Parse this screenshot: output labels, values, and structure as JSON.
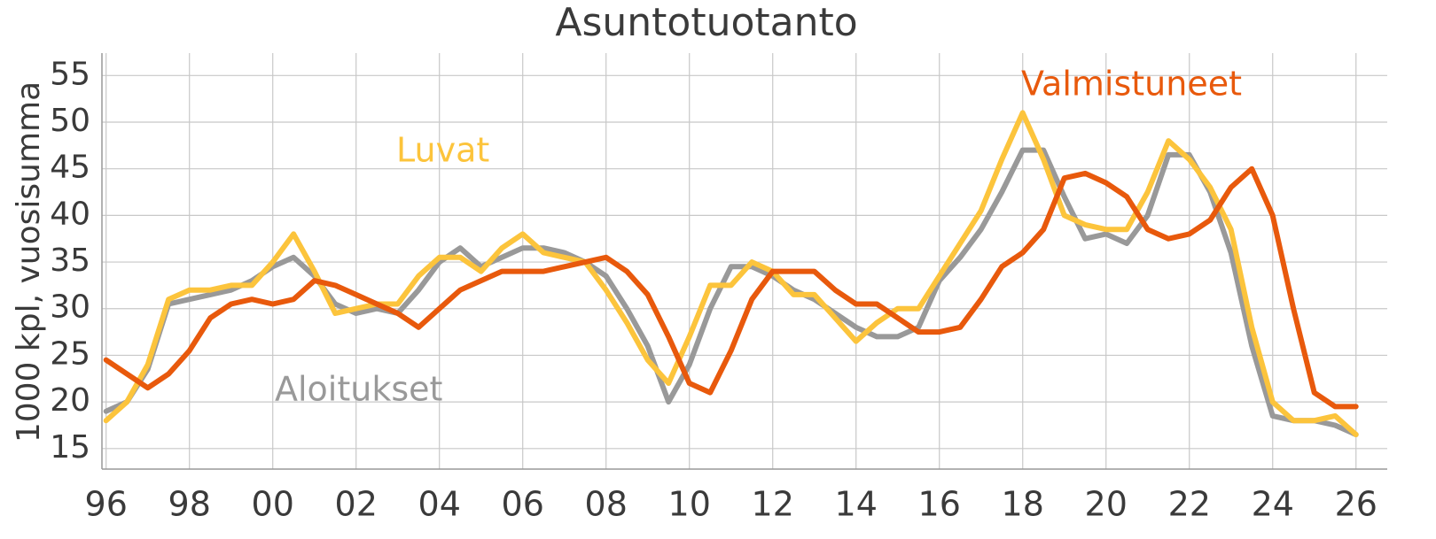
{
  "chart_data": {
    "type": "line",
    "title": "Asuntotuotanto",
    "ylabel": "1000 kpl, vuosisumma",
    "xlim": [
      1995.9,
      2026.75
    ],
    "ylim": [
      12.8,
      57.4
    ],
    "grid": true,
    "xticks": [
      {
        "value": 1996,
        "label": "96"
      },
      {
        "value": 1998,
        "label": "98"
      },
      {
        "value": 2000,
        "label": "00"
      },
      {
        "value": 2002,
        "label": "02"
      },
      {
        "value": 2004,
        "label": "04"
      },
      {
        "value": 2006,
        "label": "06"
      },
      {
        "value": 2008,
        "label": "08"
      },
      {
        "value": 2010,
        "label": "10"
      },
      {
        "value": 2012,
        "label": "12"
      },
      {
        "value": 2014,
        "label": "14"
      },
      {
        "value": 2016,
        "label": "16"
      },
      {
        "value": 2018,
        "label": "18"
      },
      {
        "value": 2020,
        "label": "20"
      },
      {
        "value": 2022,
        "label": "22"
      },
      {
        "value": 2024,
        "label": "24"
      },
      {
        "value": 2026,
        "label": "26"
      }
    ],
    "yticks": [
      15,
      20,
      25,
      30,
      35,
      40,
      45,
      50,
      55
    ],
    "x": [
      1996,
      1996.5,
      1997,
      1997.5,
      1998,
      1998.5,
      1999,
      1999.5,
      2000,
      2000.5,
      2001,
      2001.5,
      2002,
      2002.5,
      2003,
      2003.5,
      2004,
      2004.5,
      2005,
      2005.5,
      2006,
      2006.5,
      2007,
      2007.5,
      2008,
      2008.5,
      2009,
      2009.5,
      2010,
      2010.5,
      2011,
      2011.5,
      2012,
      2012.5,
      2013,
      2013.5,
      2014,
      2014.5,
      2015,
      2015.5,
      2016,
      2016.5,
      2017,
      2017.5,
      2018,
      2018.5,
      2019,
      2019.5,
      2020,
      2020.5,
      2021,
      2021.5,
      2022,
      2022.5,
      2023,
      2023.5,
      2024,
      2024.5,
      2025,
      2025.5,
      2026
    ],
    "series": [
      {
        "name": "Aloitukset",
        "color": "#999999",
        "values": [
          19,
          20,
          23.5,
          30.5,
          31,
          31.5,
          32,
          33,
          34.5,
          35.5,
          33.5,
          30.5,
          29.5,
          30,
          29.5,
          32,
          35,
          36.5,
          34.5,
          35.5,
          36.5,
          36.5,
          36,
          35,
          33.5,
          30,
          26,
          20,
          24,
          30,
          34.5,
          34.5,
          33.5,
          32,
          31,
          29.5,
          28,
          27,
          27,
          28,
          33,
          35.5,
          38.5,
          42.5,
          47,
          47,
          42,
          37.5,
          38,
          37,
          40,
          46.5,
          46.5,
          42.5,
          36,
          26,
          18.5,
          18,
          18,
          17.5,
          16.5
        ]
      },
      {
        "name": "Luvat",
        "color": "#fcc43c",
        "values": [
          18,
          20,
          24,
          31,
          32,
          32,
          32.5,
          32.5,
          35,
          38,
          34,
          29.5,
          30,
          30.5,
          30.5,
          33.5,
          35.5,
          35.5,
          34,
          36.5,
          38,
          36,
          35.5,
          35,
          32,
          28.5,
          24.5,
          22,
          27,
          32.5,
          32.5,
          35,
          34,
          31.5,
          31.5,
          29,
          26.5,
          28.5,
          30,
          30,
          33.5,
          37,
          40.5,
          46,
          51,
          46,
          40,
          39,
          38.5,
          38.5,
          42.5,
          48,
          46,
          43,
          38.5,
          28,
          20,
          18,
          18,
          18.5,
          16.5
        ]
      },
      {
        "name": "Valmistuneet",
        "color": "#e8590c",
        "values": [
          24.5,
          23,
          21.5,
          23,
          25.5,
          29,
          30.5,
          31,
          30.5,
          31,
          33,
          32.5,
          31.5,
          30.5,
          29.5,
          28,
          30,
          32,
          33,
          34,
          34,
          34,
          34.5,
          35,
          35.5,
          34,
          31.5,
          27,
          22,
          21,
          25.5,
          31,
          34,
          34,
          34,
          32,
          30.5,
          30.5,
          29,
          27.5,
          27.5,
          28,
          31,
          34.5,
          36,
          38.5,
          44,
          44.5,
          43.5,
          42,
          38.5,
          37.5,
          38,
          39.5,
          43,
          45,
          40,
          30,
          21,
          19.5,
          19.5
        ]
      }
    ]
  }
}
